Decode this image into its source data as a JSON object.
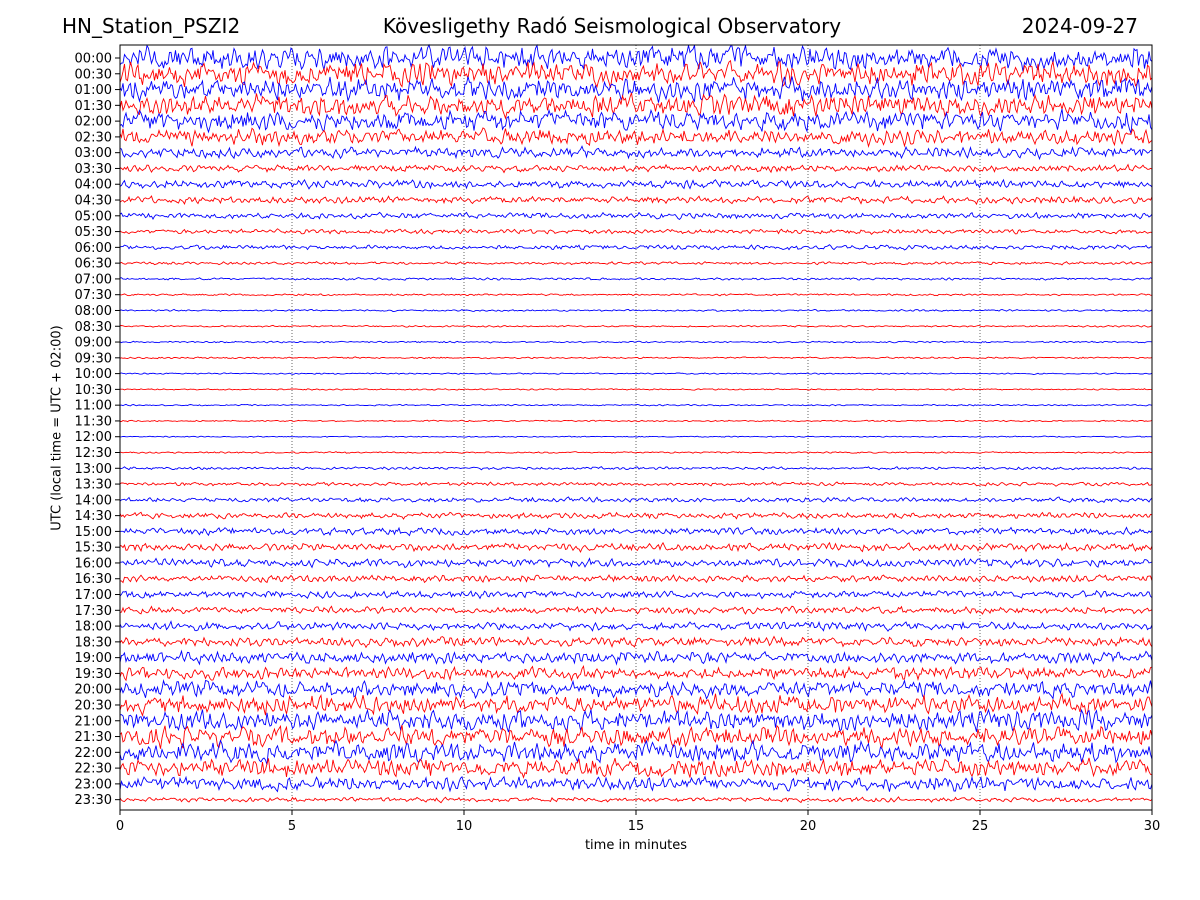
{
  "header": {
    "station": "HN_Station_PSZI2",
    "observatory": "Kövesligethy Radó Seismological Observatory",
    "date": "2024-09-27"
  },
  "chart_data": {
    "type": "line",
    "title": "Kövesligethy Radó Seismological Observatory",
    "xlabel": "time in minutes",
    "ylabel": "UTC (local time = UTC + 02:00)",
    "xlim": [
      0,
      30
    ],
    "x_ticks": [
      "0",
      "5",
      "10",
      "15",
      "20",
      "25",
      "30"
    ],
    "x_tick_values": [
      0,
      5,
      10,
      15,
      20,
      25,
      30
    ],
    "grid": "vertical dotted at each x tick",
    "trace_rows": [
      "00:00",
      "00:30",
      "01:00",
      "01:30",
      "02:00",
      "02:30",
      "03:00",
      "03:30",
      "04:00",
      "04:30",
      "05:00",
      "05:30",
      "06:00",
      "06:30",
      "07:00",
      "07:30",
      "08:00",
      "08:30",
      "09:00",
      "09:30",
      "10:00",
      "10:30",
      "11:00",
      "11:30",
      "12:00",
      "12:30",
      "13:00",
      "13:30",
      "14:00",
      "14:30",
      "15:00",
      "15:30",
      "16:00",
      "16:30",
      "17:00",
      "17:30",
      "18:00",
      "18:30",
      "19:00",
      "19:30",
      "20:00",
      "20:30",
      "21:00",
      "21:30",
      "22:00",
      "22:30",
      "23:00",
      "23:30"
    ],
    "row_colors": [
      "#0000ff",
      "#ff0000"
    ],
    "relative_amplitude": [
      1.0,
      1.0,
      0.95,
      0.9,
      0.85,
      0.7,
      0.45,
      0.3,
      0.35,
      0.3,
      0.25,
      0.2,
      0.2,
      0.12,
      0.1,
      0.08,
      0.08,
      0.07,
      0.07,
      0.07,
      0.06,
      0.06,
      0.06,
      0.06,
      0.05,
      0.07,
      0.12,
      0.15,
      0.2,
      0.25,
      0.3,
      0.35,
      0.35,
      0.3,
      0.3,
      0.3,
      0.35,
      0.4,
      0.5,
      0.55,
      0.7,
      0.8,
      0.85,
      0.85,
      0.85,
      0.75,
      0.6,
      0.2
    ]
  }
}
